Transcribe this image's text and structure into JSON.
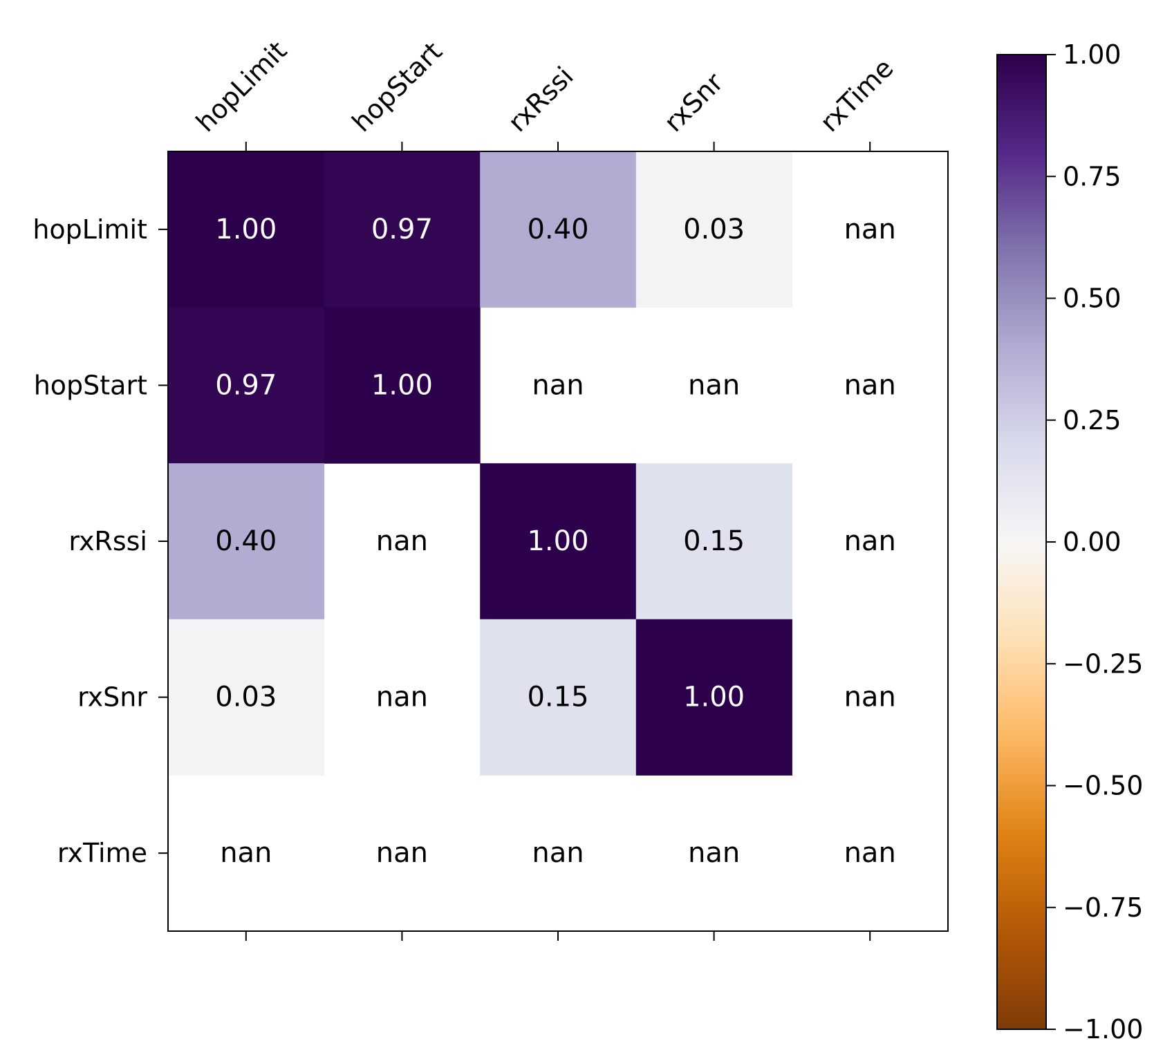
{
  "chart_data": {
    "type": "heatmap",
    "title": "",
    "xlabel": "",
    "ylabel": "",
    "x_categories": [
      "hopLimit",
      "hopStart",
      "rxRssi",
      "rxSnr",
      "rxTime"
    ],
    "y_categories": [
      "hopLimit",
      "hopStart",
      "rxRssi",
      "rxSnr",
      "rxTime"
    ],
    "values": [
      [
        1.0,
        0.97,
        0.4,
        0.03,
        null
      ],
      [
        0.97,
        1.0,
        null,
        null,
        null
      ],
      [
        0.4,
        null,
        1.0,
        0.15,
        null
      ],
      [
        0.03,
        null,
        0.15,
        1.0,
        null
      ],
      [
        null,
        null,
        null,
        null,
        null
      ]
    ],
    "cell_labels": [
      [
        "1.00",
        "0.97",
        "0.40",
        "0.03",
        "nan"
      ],
      [
        "0.97",
        "1.00",
        "nan",
        "nan",
        "nan"
      ],
      [
        "0.40",
        "nan",
        "1.00",
        "0.15",
        "nan"
      ],
      [
        "0.03",
        "nan",
        "0.15",
        "1.00",
        "nan"
      ],
      [
        "nan",
        "nan",
        "nan",
        "nan",
        "nan"
      ]
    ],
    "x_axis_position": "top",
    "grid": false,
    "colorbar": {
      "vmin": -1.0,
      "vmax": 1.0,
      "ticks": [
        1.0,
        0.75,
        0.5,
        0.25,
        0.0,
        -0.25,
        -0.5,
        -0.75,
        -1.0
      ],
      "tick_labels": [
        "1.00",
        "0.75",
        "0.50",
        "0.25",
        "0.00",
        "−0.25",
        "−0.50",
        "−0.75",
        "−1.00"
      ],
      "colormap": "PuOr",
      "placement": "right"
    },
    "colors": {
      "max": "#2d004b",
      "high": "#542788",
      "mid_high": "#8073ac",
      "low_positive": "#b2abd2",
      "pale_positive": "#d8daeb",
      "zero": "#f7f7f7",
      "pale_negative": "#fee0b6",
      "low_negative": "#fdb863",
      "mid_low": "#e08214",
      "low": "#b35806",
      "min": "#7f3b08",
      "text_light": "#ffffff",
      "text_dark": "#000000"
    }
  }
}
